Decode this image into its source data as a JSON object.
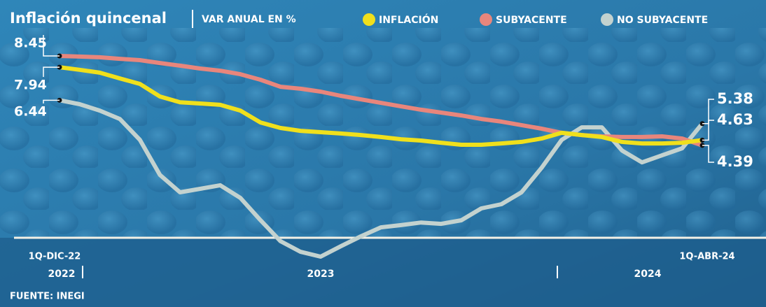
{
  "chart_data": {
    "type": "line",
    "title": "Inflación quincenal",
    "subtitle": "VAR ANUAL EN %",
    "source": "FUENTE: INEGI",
    "categories": [
      "1Q-DIC-22",
      null,
      null,
      null,
      null,
      null,
      null,
      null,
      null,
      null,
      null,
      null,
      null,
      null,
      null,
      null,
      null,
      null,
      null,
      null,
      null,
      null,
      null,
      null,
      null,
      null,
      null,
      null,
      null,
      null,
      null,
      null,
      "1Q-ABR-24"
    ],
    "annotations": [
      "2022",
      "2023",
      "2024"
    ],
    "series": [
      {
        "name": "INFLACIÓN",
        "color": "#f0e01c",
        "values": [
          7.94,
          7.82,
          7.69,
          7.43,
          7.18,
          6.61,
          6.35,
          6.29,
          6.23,
          5.97,
          5.43,
          5.18,
          5.05,
          4.99,
          4.93,
          4.86,
          4.77,
          4.67,
          4.61,
          4.51,
          4.42,
          4.42,
          4.48,
          4.55,
          4.7,
          4.96,
          4.86,
          4.77,
          4.55,
          4.48,
          4.48,
          4.51,
          4.63
        ]
      },
      {
        "name": "SUBYACENTE",
        "color": "#e8867c",
        "values": [
          8.45,
          8.42,
          8.39,
          8.32,
          8.26,
          8.13,
          8.01,
          7.88,
          7.78,
          7.62,
          7.37,
          7.05,
          6.96,
          6.83,
          6.64,
          6.48,
          6.32,
          6.16,
          6.01,
          5.88,
          5.75,
          5.59,
          5.47,
          5.31,
          5.15,
          4.96,
          4.86,
          4.8,
          4.77,
          4.77,
          4.8,
          4.7,
          4.39
        ]
      },
      {
        "name": "NO SUBYACENTE",
        "color": "#c3d2cf",
        "values": [
          6.44,
          6.26,
          5.97,
          5.59,
          4.64,
          3.05,
          2.26,
          2.42,
          2.58,
          2.01,
          1.0,
          0.04,
          -0.44,
          -0.66,
          -0.19,
          0.26,
          0.67,
          0.77,
          0.89,
          0.83,
          0.99,
          1.53,
          1.72,
          2.26,
          3.37,
          4.64,
          5.21,
          5.21,
          4.16,
          3.62,
          3.94,
          4.26,
          5.38
        ]
      }
    ]
  }
}
